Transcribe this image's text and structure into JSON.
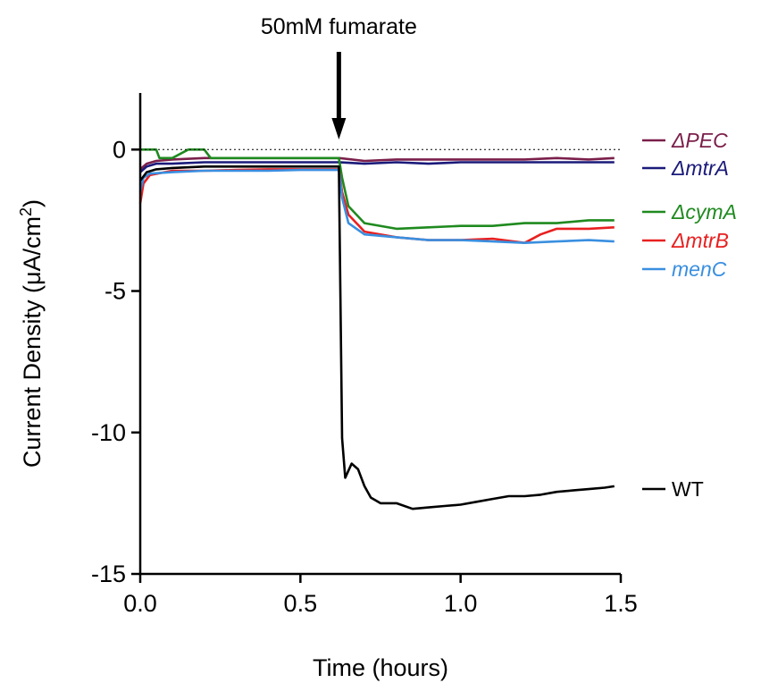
{
  "chart_data": {
    "type": "line",
    "xlabel": "Time (hours)",
    "ylabel_main": "Current Density (μA/cm",
    "ylabel_sup": "2",
    "ylabel_close": ")",
    "xlim": [
      0,
      1.5
    ],
    "ylim": [
      -15,
      2
    ],
    "x_ticks": [
      0.0,
      0.5,
      1.0,
      1.5
    ],
    "x_tick_labels": [
      "0.0",
      "0.5",
      "1.0",
      "1.5"
    ],
    "y_ticks": [
      0,
      -5,
      -10,
      -15
    ],
    "y_tick_labels": [
      "0",
      "-5",
      "-10",
      "-15"
    ],
    "grid": false,
    "legend_placement": "right",
    "annotation": {
      "text": "50mM fumarate",
      "x": 0.62
    },
    "reference_line": {
      "y": 0,
      "style": "dotted"
    },
    "series": [
      {
        "name": "ΔPEC",
        "color": "#7b1f4b",
        "italic": true,
        "points": [
          [
            0.0,
            -0.7
          ],
          [
            0.02,
            -0.5
          ],
          [
            0.05,
            -0.4
          ],
          [
            0.1,
            -0.35
          ],
          [
            0.2,
            -0.3
          ],
          [
            0.3,
            -0.3
          ],
          [
            0.4,
            -0.3
          ],
          [
            0.5,
            -0.3
          ],
          [
            0.6,
            -0.3
          ],
          [
            0.62,
            -0.3
          ],
          [
            0.7,
            -0.4
          ],
          [
            0.8,
            -0.35
          ],
          [
            0.9,
            -0.35
          ],
          [
            1.0,
            -0.35
          ],
          [
            1.1,
            -0.35
          ],
          [
            1.2,
            -0.35
          ],
          [
            1.3,
            -0.3
          ],
          [
            1.4,
            -0.35
          ],
          [
            1.48,
            -0.3
          ]
        ]
      },
      {
        "name": "ΔmtrA",
        "color": "#1a1a7a",
        "italic": true,
        "points": [
          [
            0.0,
            -0.8
          ],
          [
            0.02,
            -0.6
          ],
          [
            0.05,
            -0.5
          ],
          [
            0.1,
            -0.5
          ],
          [
            0.2,
            -0.45
          ],
          [
            0.3,
            -0.45
          ],
          [
            0.4,
            -0.45
          ],
          [
            0.5,
            -0.45
          ],
          [
            0.6,
            -0.45
          ],
          [
            0.62,
            -0.45
          ],
          [
            0.7,
            -0.5
          ],
          [
            0.8,
            -0.45
          ],
          [
            0.9,
            -0.5
          ],
          [
            1.0,
            -0.45
          ],
          [
            1.1,
            -0.45
          ],
          [
            1.2,
            -0.45
          ],
          [
            1.3,
            -0.45
          ],
          [
            1.4,
            -0.45
          ],
          [
            1.48,
            -0.45
          ]
        ]
      },
      {
        "name": "ΔcymA",
        "color": "#1f8a1f",
        "italic": true,
        "points": [
          [
            0.0,
            0.0
          ],
          [
            0.05,
            0.0
          ],
          [
            0.06,
            -0.3
          ],
          [
            0.1,
            -0.3
          ],
          [
            0.15,
            0.0
          ],
          [
            0.2,
            0.0
          ],
          [
            0.22,
            -0.3
          ],
          [
            0.3,
            -0.3
          ],
          [
            0.4,
            -0.3
          ],
          [
            0.5,
            -0.3
          ],
          [
            0.6,
            -0.3
          ],
          [
            0.62,
            -0.3
          ],
          [
            0.63,
            -1.0
          ],
          [
            0.65,
            -2.0
          ],
          [
            0.7,
            -2.6
          ],
          [
            0.8,
            -2.8
          ],
          [
            0.9,
            -2.75
          ],
          [
            1.0,
            -2.7
          ],
          [
            1.1,
            -2.7
          ],
          [
            1.2,
            -2.6
          ],
          [
            1.3,
            -2.6
          ],
          [
            1.4,
            -2.5
          ],
          [
            1.48,
            -2.5
          ]
        ]
      },
      {
        "name": "ΔmtrB",
        "color": "#e82020",
        "italic": true,
        "points": [
          [
            0.0,
            -1.9
          ],
          [
            0.01,
            -1.2
          ],
          [
            0.03,
            -0.9
          ],
          [
            0.1,
            -0.75
          ],
          [
            0.2,
            -0.75
          ],
          [
            0.3,
            -0.72
          ],
          [
            0.4,
            -0.7
          ],
          [
            0.5,
            -0.7
          ],
          [
            0.6,
            -0.7
          ],
          [
            0.62,
            -0.7
          ],
          [
            0.63,
            -1.5
          ],
          [
            0.65,
            -2.3
          ],
          [
            0.7,
            -2.9
          ],
          [
            0.8,
            -3.1
          ],
          [
            0.9,
            -3.2
          ],
          [
            1.0,
            -3.2
          ],
          [
            1.1,
            -3.15
          ],
          [
            1.2,
            -3.3
          ],
          [
            1.25,
            -3.0
          ],
          [
            1.3,
            -2.8
          ],
          [
            1.4,
            -2.8
          ],
          [
            1.48,
            -2.75
          ]
        ]
      },
      {
        "name": "menC",
        "color": "#3a8fe0",
        "italic": true,
        "points": [
          [
            0.0,
            -1.5
          ],
          [
            0.01,
            -1.0
          ],
          [
            0.03,
            -0.85
          ],
          [
            0.1,
            -0.8
          ],
          [
            0.2,
            -0.75
          ],
          [
            0.3,
            -0.75
          ],
          [
            0.4,
            -0.75
          ],
          [
            0.5,
            -0.72
          ],
          [
            0.6,
            -0.72
          ],
          [
            0.62,
            -0.72
          ],
          [
            0.63,
            -1.7
          ],
          [
            0.65,
            -2.6
          ],
          [
            0.7,
            -3.0
          ],
          [
            0.8,
            -3.1
          ],
          [
            0.9,
            -3.2
          ],
          [
            1.0,
            -3.2
          ],
          [
            1.1,
            -3.25
          ],
          [
            1.2,
            -3.3
          ],
          [
            1.3,
            -3.25
          ],
          [
            1.4,
            -3.2
          ],
          [
            1.48,
            -3.25
          ]
        ]
      },
      {
        "name": "WT",
        "color": "#000000",
        "italic": false,
        "points": [
          [
            0.0,
            -1.1
          ],
          [
            0.02,
            -0.8
          ],
          [
            0.05,
            -0.7
          ],
          [
            0.1,
            -0.65
          ],
          [
            0.2,
            -0.6
          ],
          [
            0.3,
            -0.6
          ],
          [
            0.4,
            -0.6
          ],
          [
            0.5,
            -0.6
          ],
          [
            0.6,
            -0.6
          ],
          [
            0.62,
            -0.6
          ],
          [
            0.63,
            -10.2
          ],
          [
            0.64,
            -11.6
          ],
          [
            0.66,
            -11.1
          ],
          [
            0.68,
            -11.3
          ],
          [
            0.7,
            -11.9
          ],
          [
            0.72,
            -12.3
          ],
          [
            0.75,
            -12.5
          ],
          [
            0.8,
            -12.5
          ],
          [
            0.85,
            -12.7
          ],
          [
            0.9,
            -12.65
          ],
          [
            0.95,
            -12.6
          ],
          [
            1.0,
            -12.55
          ],
          [
            1.05,
            -12.45
          ],
          [
            1.1,
            -12.35
          ],
          [
            1.15,
            -12.25
          ],
          [
            1.2,
            -12.25
          ],
          [
            1.25,
            -12.2
          ],
          [
            1.3,
            -12.1
          ],
          [
            1.35,
            -12.05
          ],
          [
            1.4,
            -12.0
          ],
          [
            1.45,
            -11.95
          ],
          [
            1.48,
            -11.9
          ]
        ]
      }
    ]
  }
}
